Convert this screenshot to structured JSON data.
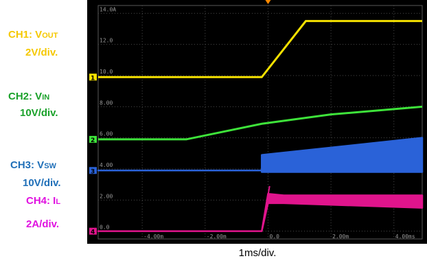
{
  "legend": {
    "ch1": {
      "name": "CH1: V",
      "sub": "OUT",
      "scale": "2V/div.",
      "color": "#f5c800"
    },
    "ch2": {
      "name": "CH2: V",
      "sub": "IN",
      "scale": "10V/div.",
      "color": "#1aa12a"
    },
    "ch3": {
      "name": "CH3: V",
      "sub": "SW",
      "scale": "10V/div.",
      "color": "#1f6fb8"
    },
    "ch4": {
      "name": "CH4: I",
      "sub": "L",
      "scale": "2A/div.",
      "color": "#e010a0"
    }
  },
  "chart_data": {
    "type": "line",
    "xlabel": "1ms/div.",
    "x_ticks": [
      "-4.00m",
      "-2.00m",
      "0.0",
      "2.00m",
      "4.00ms"
    ],
    "x_tick_values": [
      -4,
      -2,
      0,
      2,
      4
    ],
    "y_ticks": [
      "14.0A",
      "12.0",
      "10.0",
      "8.00",
      "6.00",
      "4.00",
      "2.00",
      "0.0"
    ],
    "y_tick_values": [
      14,
      12,
      10,
      8,
      6,
      4,
      2,
      0
    ],
    "xlim": [
      -5.4,
      4.9
    ],
    "ylim": [
      -0.5,
      14.5
    ],
    "grid": true,
    "series": [
      {
        "name": "CH1",
        "color": "#f5e100",
        "kind": "line",
        "x": [
          -5.4,
          -0.2,
          1.2,
          4.9
        ],
        "y": [
          9.9,
          9.9,
          13.5,
          13.5
        ]
      },
      {
        "name": "CH2",
        "color": "#3ee33a",
        "kind": "line",
        "x": [
          -5.4,
          -2.6,
          -0.2,
          2.0,
          4.9
        ],
        "y": [
          5.9,
          5.9,
          6.9,
          7.5,
          8.0
        ]
      },
      {
        "name": "CH3",
        "color": "#2a62d8",
        "kind": "band",
        "x": [
          -5.4,
          -0.2,
          -0.2,
          4.9
        ],
        "lower": [
          3.9,
          3.9,
          3.8,
          3.8
        ],
        "upper": [
          3.9,
          3.9,
          4.9,
          6.0
        ]
      },
      {
        "name": "CH4",
        "color": "#e0148c",
        "kind": "band",
        "x": [
          -5.4,
          -0.2,
          0.0,
          0.5,
          4.9
        ],
        "lower": [
          0.0,
          0.0,
          1.8,
          1.8,
          1.5
        ],
        "upper": [
          0.0,
          0.0,
          2.4,
          2.3,
          2.3
        ]
      }
    ],
    "trigger": {
      "x": 0.0
    },
    "markers": {
      "ch1": 9.9,
      "ch2": 5.9,
      "ch3": 3.9,
      "ch4": 0.0
    }
  }
}
